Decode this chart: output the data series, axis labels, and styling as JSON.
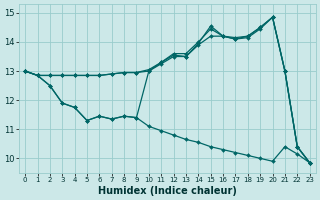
{
  "xlabel": "Humidex (Indice chaleur)",
  "bg_color": "#cce8e8",
  "line_color": "#006666",
  "grid_color": "#99cccc",
  "xlim": [
    -0.5,
    23.5
  ],
  "ylim": [
    9.5,
    15.3
  ],
  "xticks": [
    0,
    1,
    2,
    3,
    4,
    5,
    6,
    7,
    8,
    9,
    10,
    11,
    12,
    13,
    14,
    15,
    16,
    17,
    18,
    19,
    20,
    21,
    22,
    23
  ],
  "yticks": [
    10,
    11,
    12,
    13,
    14,
    15
  ],
  "series": [
    {
      "x": [
        0,
        1,
        2,
        3,
        4,
        5,
        6,
        7,
        8,
        9,
        10,
        11,
        12,
        13,
        14,
        15,
        16,
        17,
        18,
        19,
        20,
        21,
        22,
        23
      ],
      "y": [
        13.0,
        12.85,
        12.5,
        11.9,
        11.75,
        11.3,
        11.45,
        11.35,
        11.45,
        11.4,
        11.1,
        10.95,
        10.8,
        10.65,
        10.55,
        10.4,
        10.3,
        10.2,
        10.1,
        10.0,
        9.9,
        10.4,
        10.15,
        9.85
      ]
    },
    {
      "x": [
        0,
        1,
        2,
        3,
        4,
        5,
        6,
        7,
        8,
        9,
        10,
        11,
        12,
        13,
        14,
        15,
        16,
        17,
        18,
        19,
        20,
        21,
        22,
        23
      ],
      "y": [
        13.0,
        12.85,
        12.85,
        12.85,
        12.85,
        12.85,
        12.85,
        12.9,
        12.95,
        12.95,
        13.0,
        13.25,
        13.5,
        13.5,
        13.9,
        14.2,
        14.2,
        14.1,
        14.15,
        14.45,
        14.85,
        13.0,
        10.4,
        9.85
      ]
    },
    {
      "x": [
        0,
        1,
        2,
        3,
        4,
        5,
        6,
        7,
        8,
        9,
        10,
        11,
        12,
        13,
        14,
        15,
        16,
        17,
        18,
        19,
        20,
        21,
        22,
        23
      ],
      "y": [
        13.0,
        12.85,
        12.5,
        11.9,
        11.75,
        11.3,
        11.45,
        11.35,
        11.45,
        11.4,
        13.0,
        13.3,
        13.55,
        13.5,
        13.95,
        14.55,
        14.2,
        14.1,
        14.2,
        14.5,
        14.85,
        13.0,
        10.4,
        9.85
      ]
    },
    {
      "x": [
        0,
        1,
        2,
        3,
        4,
        5,
        6,
        7,
        8,
        9,
        10,
        11,
        12,
        13,
        14,
        15,
        16,
        17,
        18,
        19,
        20,
        21,
        22,
        23
      ],
      "y": [
        13.0,
        12.85,
        12.85,
        12.85,
        12.85,
        12.85,
        12.85,
        12.9,
        12.95,
        12.95,
        13.05,
        13.3,
        13.6,
        13.6,
        14.0,
        14.45,
        14.2,
        14.15,
        14.2,
        14.5,
        14.85,
        13.0,
        10.4,
        9.85
      ]
    }
  ]
}
